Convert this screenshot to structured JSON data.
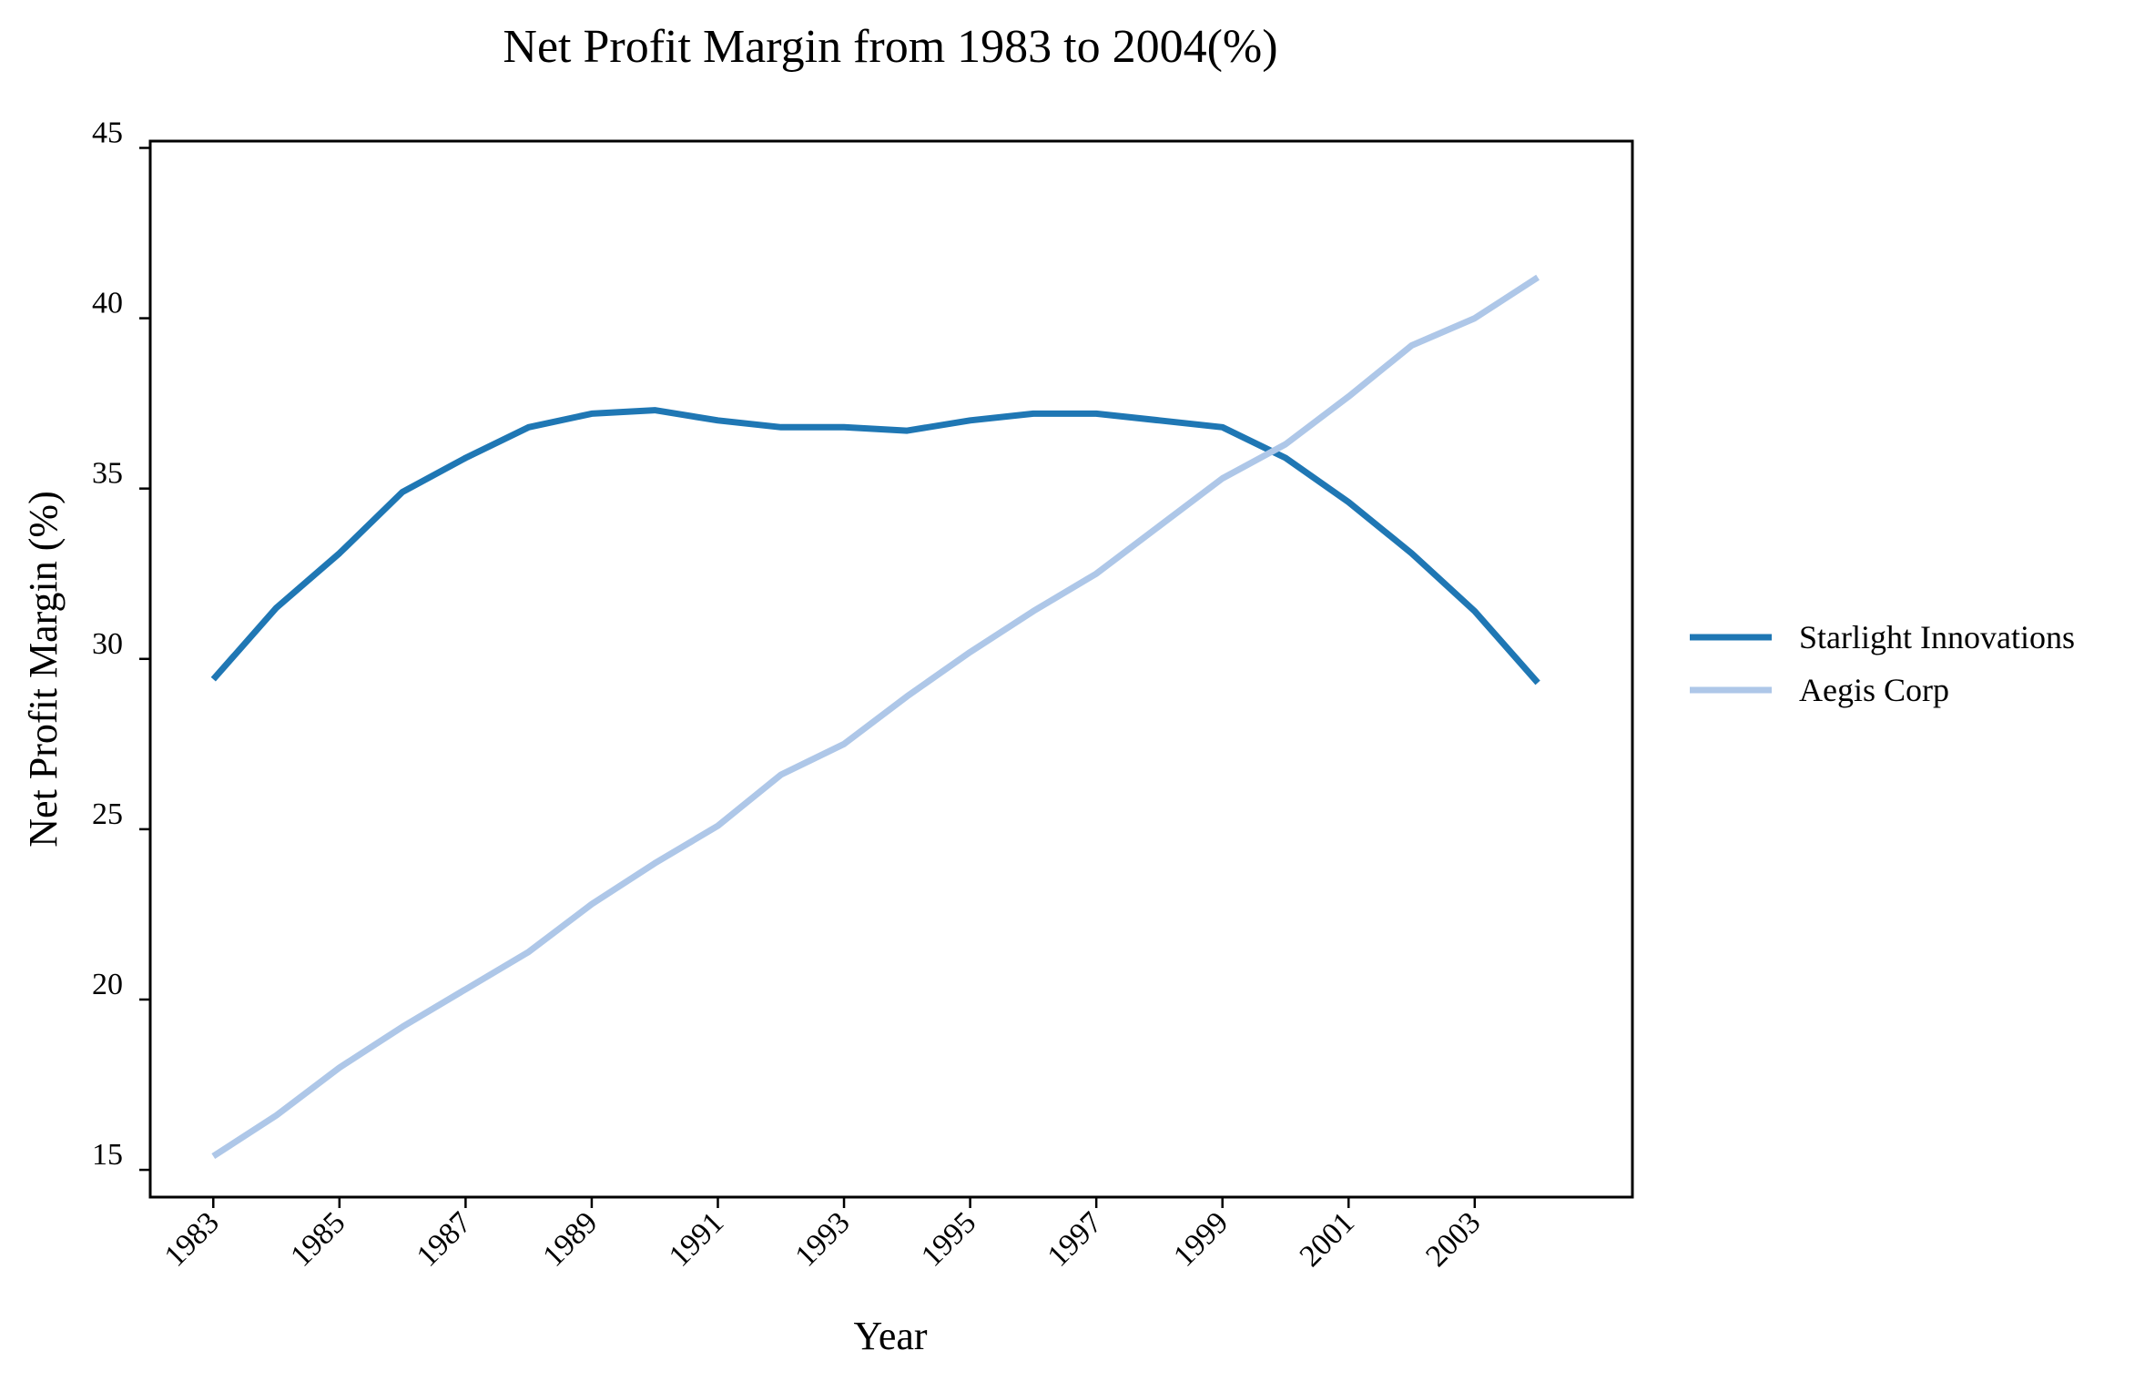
{
  "chart_data": {
    "type": "line",
    "title": "Net Profit Margin from 1983 to 2004(%)",
    "xlabel": "Year",
    "ylabel": "Net Profit Margin (%)",
    "x": [
      1983,
      1984,
      1985,
      1986,
      1987,
      1988,
      1989,
      1990,
      1991,
      1992,
      1993,
      1994,
      1995,
      1996,
      1997,
      1998,
      1999,
      2000,
      2001,
      2002,
      2003,
      2004
    ],
    "xticks": [
      "1983",
      "1985",
      "1987",
      "1989",
      "1991",
      "1993",
      "1995",
      "1997",
      "1999",
      "2001",
      "2003"
    ],
    "yticks": [
      "15",
      "20",
      "25",
      "30",
      "35",
      "40",
      "45"
    ],
    "xlim": [
      1982,
      2005.5
    ],
    "ylim": [
      14.2,
      45.2
    ],
    "grid": false,
    "legend_position": "right",
    "series": [
      {
        "name": "Starlight Innovations",
        "color": "#1f77b4",
        "values": [
          29.4,
          31.5,
          33.1,
          34.9,
          35.9,
          36.8,
          37.2,
          37.3,
          37.0,
          36.8,
          36.8,
          36.7,
          37.0,
          37.2,
          37.2,
          37.0,
          36.8,
          35.9,
          34.6,
          33.1,
          31.4,
          29.3
        ]
      },
      {
        "name": "Aegis Corp",
        "color": "#aec7e8",
        "values": [
          15.4,
          16.6,
          18.0,
          19.2,
          20.3,
          21.4,
          22.8,
          24.0,
          25.1,
          26.6,
          27.5,
          28.9,
          30.2,
          31.4,
          32.5,
          33.9,
          35.3,
          36.3,
          37.7,
          39.2,
          40.0,
          41.2
        ]
      }
    ]
  }
}
